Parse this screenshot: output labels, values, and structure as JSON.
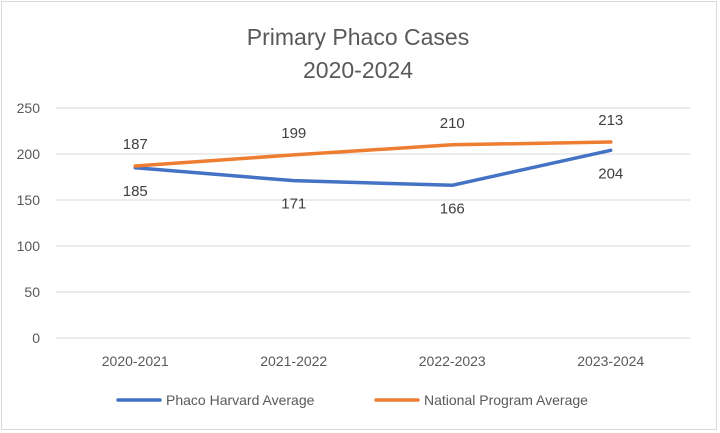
{
  "chart_data": {
    "type": "line",
    "title": "Primary Phaco Cases",
    "subtitle": "2020-2024",
    "xlabel": "",
    "ylabel": "",
    "categories": [
      "2020-2021",
      "2021-2022",
      "2022-2023",
      "2023-2024"
    ],
    "ylim": [
      0,
      250
    ],
    "yticks": [
      0,
      50,
      100,
      150,
      200,
      250
    ],
    "grid": true,
    "legend_position": "bottom",
    "series": [
      {
        "name": "Phaco Harvard Average",
        "values": [
          185,
          171,
          166,
          204
        ],
        "color": "#4472c4",
        "label_position": "below"
      },
      {
        "name": "National Program Average",
        "values": [
          187,
          199,
          210,
          213
        ],
        "color": "#ed7d31",
        "label_position": "above"
      }
    ]
  }
}
